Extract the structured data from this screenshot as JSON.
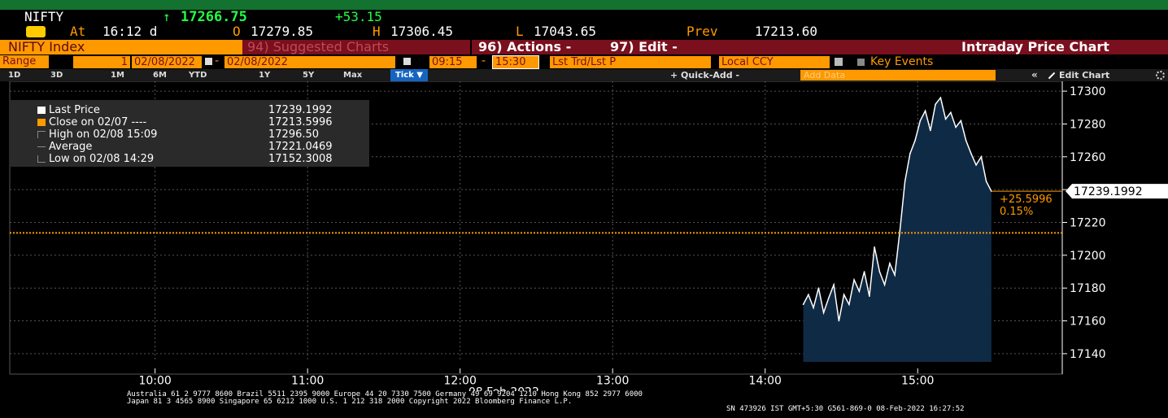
{
  "header": {
    "ticker": "NIFTY",
    "last_arrow": "↑",
    "last": "17266.75",
    "change": "+53.15",
    "clock_icon": "clock-icon",
    "at_label": "At",
    "time": "16:12 d",
    "open_label": "O",
    "open": "17279.85",
    "high_label": "H",
    "high": "17306.45",
    "low_label": "L",
    "low": "17043.65",
    "prev_label": "Prev",
    "prev": "17213.60"
  },
  "toolbar": {
    "security": "NIFTY Index",
    "suggested": "94) Suggested Charts",
    "actions": "96) Actions -",
    "edit": "97) Edit -",
    "title": "Intraday Price Chart"
  },
  "range": {
    "label": "Range",
    "num": "1",
    "start_date": "02/08/2022",
    "dash": "-",
    "end_date": "02/08/2022",
    "start_time": "09:15",
    "end_time": "15:30",
    "field": "Lst Trd/Lst P",
    "currency": "Local CCY",
    "key_events": "Key Events"
  },
  "periods": {
    "items": [
      "1D",
      "3D",
      "1M",
      "6M",
      "YTD",
      "1Y",
      "5Y",
      "Max"
    ],
    "tick": "Tick ▼",
    "quick_add": "+ Quick-Add -",
    "add_data_placeholder": "Add Data",
    "collapse": "«",
    "edit_chart": "Edit Chart",
    "gear_icon": "gear-icon"
  },
  "chart_data": {
    "type": "area",
    "x_date_label": "08 Feb 2022",
    "x_ticks": [
      "10:00",
      "11:00",
      "12:00",
      "13:00",
      "14:00",
      "15:00"
    ],
    "y_ticks": [
      17140,
      17160,
      17180,
      17200,
      17220,
      17240,
      17260,
      17280,
      17300
    ],
    "ylim": [
      17135,
      17305
    ],
    "grid": true,
    "colors": {
      "line": "#ffffff",
      "fill": "#0f2a45",
      "prev_close": "#ff9900"
    },
    "legend": [
      {
        "label": "Last Price",
        "value": "17239.1992",
        "swatch": "#ffffff"
      },
      {
        "label": "Close on 02/07 ----",
        "value": "17213.5996",
        "swatch": "#ff9900"
      },
      {
        "label": "High on 02/08 15:09",
        "value": "17296.50",
        "swatch": "none"
      },
      {
        "label": "Average",
        "value": "17221.0469",
        "swatch": "none"
      },
      {
        "label": "Low on 02/08 14:29",
        "value": "17152.3008",
        "swatch": "none"
      }
    ],
    "prev_close": 17213.6,
    "last_value_label": "17239.1992",
    "change_label": "+25.5996",
    "change_pct_label": "0.15%",
    "series": [
      {
        "name": "Last Price",
        "x": [
          "14:15",
          "14:17",
          "14:19",
          "14:21",
          "14:23",
          "14:25",
          "14:27",
          "14:29",
          "14:31",
          "14:33",
          "14:35",
          "14:37",
          "14:39",
          "14:41",
          "14:43",
          "14:45",
          "14:47",
          "14:49",
          "14:51",
          "14:53",
          "14:55",
          "14:57",
          "14:59",
          "15:01",
          "15:03",
          "15:05",
          "15:07",
          "15:09",
          "15:11",
          "15:13",
          "15:15",
          "15:17",
          "15:19",
          "15:21",
          "15:23",
          "15:25",
          "15:27",
          "15:29"
        ],
        "values": [
          17170,
          17176,
          17168,
          17180,
          17165,
          17174,
          17182,
          17160,
          17176,
          17170,
          17185,
          17178,
          17190,
          17175,
          17205,
          17190,
          17182,
          17195,
          17188,
          17215,
          17245,
          17262,
          17270,
          17282,
          17288,
          17276,
          17292,
          17296,
          17283,
          17287,
          17278,
          17282,
          17270,
          17262,
          17255,
          17260,
          17245,
          17239
        ]
      }
    ]
  },
  "footer": {
    "line1": "Australia 61 2 9777 8600 Brazil 5511 2395 9000 Europe 44 20 7330 7500 Germany 49 69 9204 1210 Hong Kong 852 2977 6000",
    "line2": "Japan 81 3 4565 8900        Singapore 65 6212 1000         U.S. 1 212 318 2000                 Copyright 2022 Bloomberg Finance L.P.",
    "line3": "SN 473926 IST  GMT+5:30 G561-869-0 08-Feb-2022 16:27:52"
  }
}
